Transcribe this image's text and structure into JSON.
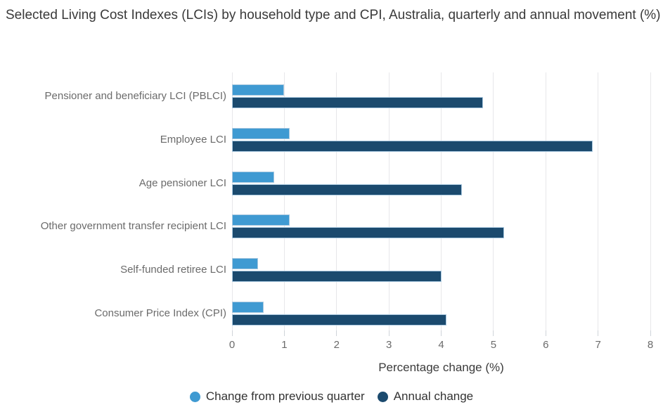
{
  "chart_data": {
    "type": "bar",
    "orientation": "horizontal",
    "title": "Selected Living Cost Indexes (LCIs) by household type and CPI, Australia, quarterly and annual movement (%)",
    "xlabel": "Percentage change (%)",
    "ylabel": "",
    "categories": [
      "Pensioner and beneficiary LCI (PBLCI)",
      "Employee LCI",
      "Age pensioner LCI",
      "Other government transfer recipient LCI",
      "Self-funded retiree LCI",
      "Consumer Price Index (CPI)"
    ],
    "series": [
      {
        "name": "Change from previous quarter",
        "color": "#3f9ad2",
        "values": [
          1.0,
          1.1,
          0.8,
          1.1,
          0.5,
          0.6
        ]
      },
      {
        "name": "Annual change",
        "color": "#1b4a6e",
        "values": [
          4.8,
          6.9,
          4.4,
          5.2,
          4.0,
          4.1
        ]
      }
    ],
    "xlim": [
      0,
      8
    ],
    "xticks": [
      0,
      1,
      2,
      3,
      4,
      5,
      6,
      7,
      8
    ],
    "grid": true,
    "legend_position": "bottom"
  },
  "colors": {
    "quarterly": "#3f9ad2",
    "annual": "#1b4a6e",
    "bar_border": "#aac9e0",
    "gridline": "#e7e7ea",
    "title_text": "#3a3a3a",
    "label_text": "#6b6b6b"
  }
}
